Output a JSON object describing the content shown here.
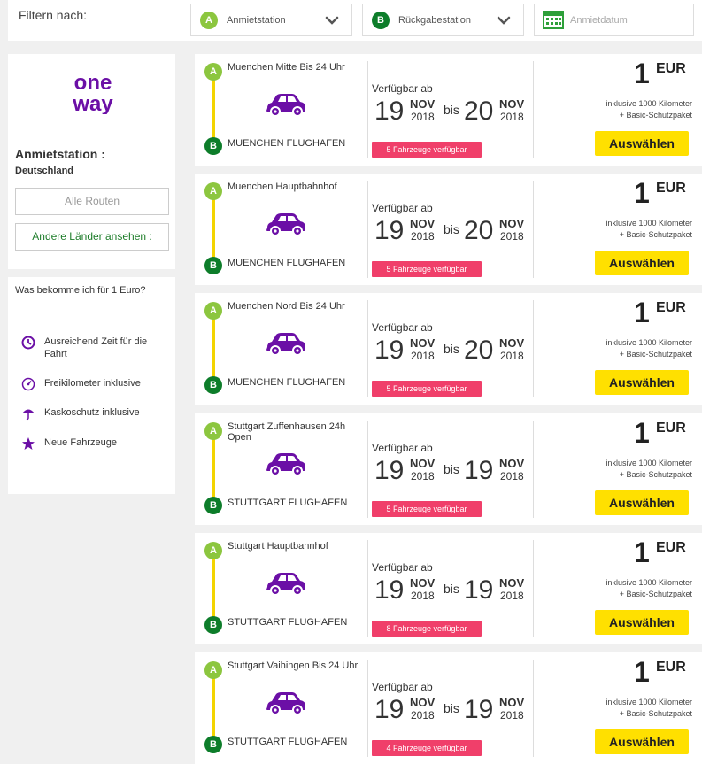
{
  "filter": {
    "label": "Filtern nach:",
    "pickup": {
      "badge": "A",
      "text": "Anmietstation"
    },
    "return": {
      "badge": "B",
      "text": "Rückgabestation"
    },
    "date": {
      "placeholder": "Anmietdatum"
    }
  },
  "colors": {
    "badge_a": "#8cc63f",
    "badge_b": "#0d7d2a",
    "accent_purple": "#6b0fa6",
    "route_yellow": "#f3d400",
    "pill_pink": "#f03f6a",
    "button_yellow": "#ffe000"
  },
  "sidebar": {
    "logo_name": "oneway-logo",
    "heading": "Anmietstation :",
    "country": "Deutschland",
    "btn_all_routes": "Alle Routen",
    "btn_other_countries": "Andere Länder ansehen :",
    "info_title": "Was bekomme ich für 1 Euro?",
    "features": [
      {
        "icon": "clock-icon",
        "text": "Ausreichend Zeit für die Fahrt"
      },
      {
        "icon": "speedometer-icon",
        "text": "Freikilometer inklusive"
      },
      {
        "icon": "umbrella-icon",
        "text": "Kaskoschutz inklusive"
      },
      {
        "icon": "star-icon",
        "text": "Neue Fahrzeuge"
      }
    ]
  },
  "cards": [
    {
      "from": "Muenchen Mitte Bis 24 Uhr",
      "to": "MUENCHEN FLUGHAFEN",
      "avail_label": "Verfügbar ab",
      "start_day": "19",
      "start_month": "NOV",
      "start_year": "2018",
      "bis": "bis",
      "end_day": "20",
      "end_month": "NOV",
      "end_year": "2018",
      "vehicles": "5 Fahrzeuge verfügbar",
      "price": "1",
      "currency": "EUR",
      "incl_line1": "inklusive 1000 Kilometer",
      "incl_line2": "+ Basic-Schutzpaket",
      "button": "Auswählen"
    },
    {
      "from": "Muenchen Hauptbahnhof",
      "to": "MUENCHEN FLUGHAFEN",
      "avail_label": "Verfügbar ab",
      "start_day": "19",
      "start_month": "NOV",
      "start_year": "2018",
      "bis": "bis",
      "end_day": "20",
      "end_month": "NOV",
      "end_year": "2018",
      "vehicles": "5 Fahrzeuge verfügbar",
      "price": "1",
      "currency": "EUR",
      "incl_line1": "inklusive 1000 Kilometer",
      "incl_line2": "+ Basic-Schutzpaket",
      "button": "Auswählen"
    },
    {
      "from": "Muenchen Nord Bis 24 Uhr",
      "to": "MUENCHEN FLUGHAFEN",
      "avail_label": "Verfügbar ab",
      "start_day": "19",
      "start_month": "NOV",
      "start_year": "2018",
      "bis": "bis",
      "end_day": "20",
      "end_month": "NOV",
      "end_year": "2018",
      "vehicles": "5 Fahrzeuge verfügbar",
      "price": "1",
      "currency": "EUR",
      "incl_line1": "inklusive 1000 Kilometer",
      "incl_line2": "+ Basic-Schutzpaket",
      "button": "Auswählen"
    },
    {
      "from": "Stuttgart Zuffenhausen 24h Open",
      "to": "STUTTGART FLUGHAFEN",
      "avail_label": "Verfügbar ab",
      "start_day": "19",
      "start_month": "NOV",
      "start_year": "2018",
      "bis": "bis",
      "end_day": "19",
      "end_month": "NOV",
      "end_year": "2018",
      "vehicles": "5 Fahrzeuge verfügbar",
      "price": "1",
      "currency": "EUR",
      "incl_line1": "inklusive 1000 Kilometer",
      "incl_line2": "+ Basic-Schutzpaket",
      "button": "Auswählen"
    },
    {
      "from": "Stuttgart Hauptbahnhof",
      "to": "STUTTGART FLUGHAFEN",
      "avail_label": "Verfügbar ab",
      "start_day": "19",
      "start_month": "NOV",
      "start_year": "2018",
      "bis": "bis",
      "end_day": "19",
      "end_month": "NOV",
      "end_year": "2018",
      "vehicles": "8 Fahrzeuge verfügbar",
      "price": "1",
      "currency": "EUR",
      "incl_line1": "inklusive 1000 Kilometer",
      "incl_line2": "+ Basic-Schutzpaket",
      "button": "Auswählen"
    },
    {
      "from": "Stuttgart Vaihingen Bis 24 Uhr",
      "to": "STUTTGART FLUGHAFEN",
      "avail_label": "Verfügbar ab",
      "start_day": "19",
      "start_month": "NOV",
      "start_year": "2018",
      "bis": "bis",
      "end_day": "19",
      "end_month": "NOV",
      "end_year": "2018",
      "vehicles": "4 Fahrzeuge verfügbar",
      "price": "1",
      "currency": "EUR",
      "incl_line1": "inklusive 1000 Kilometer",
      "incl_line2": "+ Basic-Schutzpaket",
      "button": "Auswählen"
    }
  ]
}
